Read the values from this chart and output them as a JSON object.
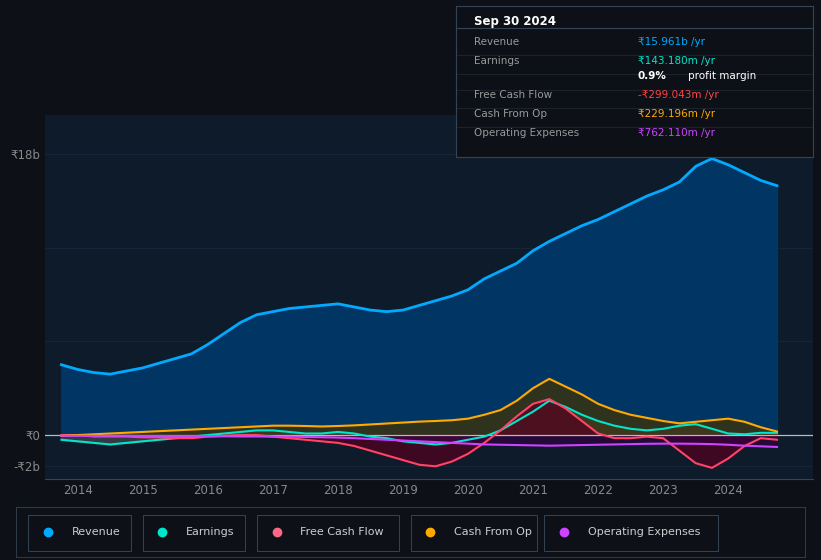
{
  "bg_color": "#0d1117",
  "plot_bg_color": "#0d1b2a",
  "title_box": {
    "date": "Sep 30 2024",
    "rows": [
      {
        "label": "Revenue",
        "value": "₹15.961b /yr",
        "value_color": "#00aaff"
      },
      {
        "label": "Earnings",
        "value": "₹143.180m /yr",
        "value_color": "#00e5cc"
      },
      {
        "label": "",
        "value": "0.9% profit margin",
        "value_color": "#ffffff"
      },
      {
        "label": "Free Cash Flow",
        "value": "-₹299.043m /yr",
        "value_color": "#ff4444"
      },
      {
        "label": "Cash From Op",
        "value": "₹229.196m /yr",
        "value_color": "#ffaa00"
      },
      {
        "label": "Operating Expenses",
        "value": "₹762.110m /yr",
        "value_color": "#cc44ff"
      }
    ]
  },
  "legend": [
    {
      "label": "Revenue",
      "color": "#00aaff"
    },
    {
      "label": "Earnings",
      "color": "#00e5cc"
    },
    {
      "label": "Free Cash Flow",
      "color": "#ff6688"
    },
    {
      "label": "Cash From Op",
      "color": "#ffaa00"
    },
    {
      "label": "Operating Expenses",
      "color": "#cc44ff"
    }
  ],
  "y_axis_labels": [
    "₹18b",
    "₹0",
    "-₹2b"
  ],
  "ytick_vals": [
    18,
    0,
    -2
  ],
  "x_axis_labels": [
    "2014",
    "2015",
    "2016",
    "2017",
    "2018",
    "2019",
    "2020",
    "2021",
    "2022",
    "2023",
    "2024"
  ],
  "ylim": [
    -2.8,
    20.5
  ],
  "xlim": [
    2013.5,
    2025.3
  ],
  "grid_color": "#1e2e40",
  "grid_y_vals": [
    18,
    12,
    6,
    0,
    -2
  ],
  "revenue_color": "#00aaff",
  "revenue_fill": "#003a6e",
  "earnings_color": "#00e5cc",
  "earnings_fill": "#555555",
  "fcf_color": "#ff4466",
  "fcf_fill": "#550020",
  "cashop_color": "#ffaa00",
  "cashop_fill": "#443300",
  "opex_color": "#cc44ff",
  "opex_fill": "#330044",
  "revenue_x": [
    2013.75,
    2014.0,
    2014.25,
    2014.5,
    2014.75,
    2015.0,
    2015.25,
    2015.5,
    2015.75,
    2016.0,
    2016.25,
    2016.5,
    2016.75,
    2017.0,
    2017.25,
    2017.5,
    2017.75,
    2018.0,
    2018.25,
    2018.5,
    2018.75,
    2019.0,
    2019.25,
    2019.5,
    2019.75,
    2020.0,
    2020.25,
    2020.5,
    2020.75,
    2021.0,
    2021.25,
    2021.5,
    2021.75,
    2022.0,
    2022.25,
    2022.5,
    2022.75,
    2023.0,
    2023.25,
    2023.5,
    2023.75,
    2024.0,
    2024.25,
    2024.5,
    2024.75
  ],
  "revenue_y": [
    4.5,
    4.2,
    4.0,
    3.9,
    4.1,
    4.3,
    4.6,
    4.9,
    5.2,
    5.8,
    6.5,
    7.2,
    7.7,
    7.9,
    8.1,
    8.2,
    8.3,
    8.4,
    8.2,
    8.0,
    7.9,
    8.0,
    8.3,
    8.6,
    8.9,
    9.3,
    10.0,
    10.5,
    11.0,
    11.8,
    12.4,
    12.9,
    13.4,
    13.8,
    14.3,
    14.8,
    15.3,
    15.7,
    16.2,
    17.2,
    17.7,
    17.3,
    16.8,
    16.3,
    15.961
  ],
  "earnings_x": [
    2013.75,
    2014.0,
    2014.25,
    2014.5,
    2014.75,
    2015.0,
    2015.25,
    2015.5,
    2015.75,
    2016.0,
    2016.25,
    2016.5,
    2016.75,
    2017.0,
    2017.25,
    2017.5,
    2017.75,
    2018.0,
    2018.25,
    2018.5,
    2018.75,
    2019.0,
    2019.25,
    2019.5,
    2019.75,
    2020.0,
    2020.25,
    2020.5,
    2020.75,
    2021.0,
    2021.25,
    2021.5,
    2021.75,
    2022.0,
    2022.25,
    2022.5,
    2022.75,
    2023.0,
    2023.25,
    2023.5,
    2023.75,
    2024.0,
    2024.25,
    2024.5,
    2024.75
  ],
  "earnings_y": [
    -0.3,
    -0.4,
    -0.5,
    -0.6,
    -0.5,
    -0.4,
    -0.3,
    -0.2,
    -0.1,
    0.0,
    0.1,
    0.2,
    0.3,
    0.3,
    0.2,
    0.1,
    0.1,
    0.2,
    0.1,
    -0.1,
    -0.2,
    -0.4,
    -0.5,
    -0.6,
    -0.5,
    -0.3,
    -0.1,
    0.3,
    0.9,
    1.5,
    2.2,
    1.8,
    1.3,
    0.9,
    0.6,
    0.4,
    0.3,
    0.4,
    0.6,
    0.7,
    0.4,
    0.1,
    0.05,
    0.143,
    0.143
  ],
  "fcf_x": [
    2013.75,
    2014.0,
    2014.25,
    2014.5,
    2014.75,
    2015.0,
    2015.25,
    2015.5,
    2015.75,
    2016.0,
    2016.25,
    2016.5,
    2016.75,
    2017.0,
    2017.25,
    2017.5,
    2017.75,
    2018.0,
    2018.25,
    2018.5,
    2018.75,
    2019.0,
    2019.25,
    2019.5,
    2019.75,
    2020.0,
    2020.25,
    2020.5,
    2020.75,
    2021.0,
    2021.25,
    2021.5,
    2021.75,
    2022.0,
    2022.25,
    2022.5,
    2022.75,
    2023.0,
    2023.25,
    2023.5,
    2023.75,
    2024.0,
    2024.25,
    2024.5,
    2024.75
  ],
  "fcf_y": [
    0.0,
    0.0,
    -0.1,
    -0.1,
    -0.1,
    -0.15,
    -0.15,
    -0.2,
    -0.2,
    -0.1,
    -0.05,
    0.0,
    0.0,
    -0.1,
    -0.2,
    -0.3,
    -0.4,
    -0.5,
    -0.7,
    -1.0,
    -1.3,
    -1.6,
    -1.9,
    -2.0,
    -1.7,
    -1.2,
    -0.5,
    0.3,
    1.2,
    2.0,
    2.3,
    1.7,
    0.9,
    0.1,
    -0.2,
    -0.2,
    -0.1,
    -0.2,
    -1.0,
    -1.8,
    -2.1,
    -1.5,
    -0.7,
    -0.2,
    -0.299
  ],
  "cashop_x": [
    2013.75,
    2014.0,
    2014.25,
    2014.5,
    2014.75,
    2015.0,
    2015.25,
    2015.5,
    2015.75,
    2016.0,
    2016.25,
    2016.5,
    2016.75,
    2017.0,
    2017.25,
    2017.5,
    2017.75,
    2018.0,
    2018.25,
    2018.5,
    2018.75,
    2019.0,
    2019.25,
    2019.5,
    2019.75,
    2020.0,
    2020.25,
    2020.5,
    2020.75,
    2021.0,
    2021.25,
    2021.5,
    2021.75,
    2022.0,
    2022.25,
    2022.5,
    2022.75,
    2023.0,
    2023.25,
    2023.5,
    2023.75,
    2024.0,
    2024.25,
    2024.5,
    2024.75
  ],
  "cashop_y": [
    -0.05,
    0.0,
    0.05,
    0.1,
    0.15,
    0.2,
    0.25,
    0.3,
    0.35,
    0.4,
    0.45,
    0.5,
    0.55,
    0.6,
    0.6,
    0.58,
    0.55,
    0.58,
    0.62,
    0.68,
    0.74,
    0.8,
    0.86,
    0.9,
    0.95,
    1.05,
    1.3,
    1.6,
    2.2,
    3.0,
    3.6,
    3.1,
    2.6,
    2.0,
    1.6,
    1.3,
    1.1,
    0.9,
    0.75,
    0.85,
    0.95,
    1.05,
    0.85,
    0.5,
    0.229
  ],
  "opex_x": [
    2013.75,
    2014.0,
    2014.25,
    2014.5,
    2014.75,
    2015.0,
    2015.25,
    2015.5,
    2015.75,
    2016.0,
    2016.25,
    2016.5,
    2016.75,
    2017.0,
    2017.25,
    2017.5,
    2017.75,
    2018.0,
    2018.25,
    2018.5,
    2018.75,
    2019.0,
    2019.25,
    2019.5,
    2019.75,
    2020.0,
    2020.25,
    2020.5,
    2020.75,
    2021.0,
    2021.25,
    2021.5,
    2021.75,
    2022.0,
    2022.25,
    2022.5,
    2022.75,
    2023.0,
    2023.25,
    2023.5,
    2023.75,
    2024.0,
    2024.25,
    2024.5,
    2024.75
  ],
  "opex_y": [
    -0.05,
    -0.05,
    -0.05,
    -0.05,
    -0.05,
    -0.06,
    -0.06,
    -0.07,
    -0.07,
    -0.08,
    -0.08,
    -0.09,
    -0.09,
    -0.1,
    -0.1,
    -0.12,
    -0.14,
    -0.16,
    -0.2,
    -0.25,
    -0.3,
    -0.35,
    -0.4,
    -0.45,
    -0.5,
    -0.55,
    -0.6,
    -0.62,
    -0.64,
    -0.66,
    -0.68,
    -0.66,
    -0.64,
    -0.62,
    -0.6,
    -0.58,
    -0.56,
    -0.55,
    -0.55,
    -0.56,
    -0.58,
    -0.62,
    -0.68,
    -0.72,
    -0.762
  ]
}
